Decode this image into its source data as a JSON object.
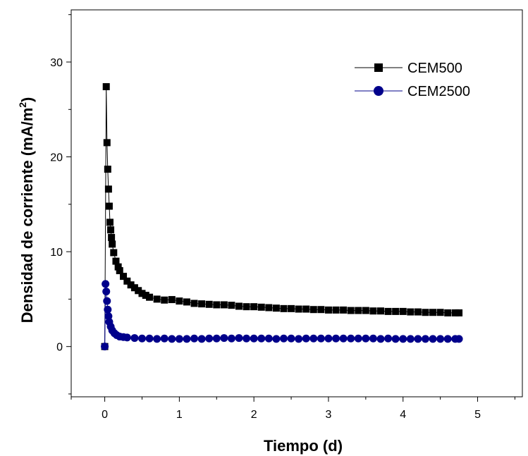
{
  "chart_data": {
    "type": "scatter",
    "xlabel": "Tiempo (d)",
    "ylabel_main": "Densidad de corriente (mA/m",
    "ylabel_sup": "2",
    "ylabel_close": ")",
    "xlim": [
      -0.45,
      5.6
    ],
    "ylim": [
      -5.3,
      35.5
    ],
    "x_ticks": [
      0,
      1,
      2,
      3,
      4,
      5
    ],
    "y_ticks": [
      0,
      10,
      20,
      30
    ],
    "grid": false,
    "legend_position": "top-right",
    "series": [
      {
        "name": "CEM500",
        "marker": "square",
        "color": "#000000",
        "points": [
          [
            0.0,
            0.0
          ],
          [
            0.02,
            27.4
          ],
          [
            0.03,
            21.5
          ],
          [
            0.04,
            18.7
          ],
          [
            0.05,
            16.6
          ],
          [
            0.06,
            14.8
          ],
          [
            0.07,
            13.1
          ],
          [
            0.08,
            12.3
          ],
          [
            0.09,
            11.5
          ],
          [
            0.1,
            10.8
          ],
          [
            0.12,
            9.9
          ],
          [
            0.15,
            9.0
          ],
          [
            0.18,
            8.4
          ],
          [
            0.2,
            8.0
          ],
          [
            0.25,
            7.4
          ],
          [
            0.3,
            6.9
          ],
          [
            0.35,
            6.5
          ],
          [
            0.4,
            6.2
          ],
          [
            0.45,
            5.9
          ],
          [
            0.5,
            5.6
          ],
          [
            0.55,
            5.4
          ],
          [
            0.6,
            5.2
          ],
          [
            0.7,
            5.0
          ],
          [
            0.8,
            4.9
          ],
          [
            0.9,
            4.95
          ],
          [
            1.0,
            4.8
          ],
          [
            1.1,
            4.7
          ],
          [
            1.2,
            4.55
          ],
          [
            1.3,
            4.5
          ],
          [
            1.4,
            4.45
          ],
          [
            1.5,
            4.4
          ],
          [
            1.6,
            4.4
          ],
          [
            1.7,
            4.35
          ],
          [
            1.8,
            4.25
          ],
          [
            1.9,
            4.2
          ],
          [
            2.0,
            4.2
          ],
          [
            2.1,
            4.15
          ],
          [
            2.2,
            4.1
          ],
          [
            2.3,
            4.05
          ],
          [
            2.4,
            4.0
          ],
          [
            2.5,
            4.0
          ],
          [
            2.6,
            3.95
          ],
          [
            2.7,
            3.95
          ],
          [
            2.8,
            3.9
          ],
          [
            2.9,
            3.9
          ],
          [
            3.0,
            3.85
          ],
          [
            3.1,
            3.85
          ],
          [
            3.2,
            3.85
          ],
          [
            3.3,
            3.8
          ],
          [
            3.4,
            3.8
          ],
          [
            3.5,
            3.8
          ],
          [
            3.6,
            3.75
          ],
          [
            3.7,
            3.75
          ],
          [
            3.8,
            3.7
          ],
          [
            3.9,
            3.7
          ],
          [
            4.0,
            3.7
          ],
          [
            4.1,
            3.65
          ],
          [
            4.2,
            3.65
          ],
          [
            4.3,
            3.6
          ],
          [
            4.4,
            3.6
          ],
          [
            4.5,
            3.6
          ],
          [
            4.6,
            3.55
          ],
          [
            4.7,
            3.55
          ],
          [
            4.75,
            3.55
          ]
        ]
      },
      {
        "name": "CEM2500",
        "marker": "circle",
        "color": "#00008b",
        "points": [
          [
            0.0,
            0.0
          ],
          [
            0.01,
            6.6
          ],
          [
            0.02,
            5.8
          ],
          [
            0.03,
            4.8
          ],
          [
            0.04,
            3.9
          ],
          [
            0.05,
            3.2
          ],
          [
            0.06,
            2.6
          ],
          [
            0.08,
            2.1
          ],
          [
            0.1,
            1.7
          ],
          [
            0.13,
            1.4
          ],
          [
            0.16,
            1.2
          ],
          [
            0.2,
            1.05
          ],
          [
            0.25,
            1.0
          ],
          [
            0.3,
            0.95
          ],
          [
            0.4,
            0.9
          ],
          [
            0.5,
            0.85
          ],
          [
            0.6,
            0.85
          ],
          [
            0.7,
            0.8
          ],
          [
            0.8,
            0.85
          ],
          [
            0.9,
            0.8
          ],
          [
            1.0,
            0.8
          ],
          [
            1.1,
            0.8
          ],
          [
            1.2,
            0.85
          ],
          [
            1.3,
            0.8
          ],
          [
            1.4,
            0.85
          ],
          [
            1.5,
            0.85
          ],
          [
            1.6,
            0.9
          ],
          [
            1.7,
            0.85
          ],
          [
            1.8,
            0.9
          ],
          [
            1.9,
            0.85
          ],
          [
            2.0,
            0.85
          ],
          [
            2.1,
            0.85
          ],
          [
            2.2,
            0.85
          ],
          [
            2.3,
            0.8
          ],
          [
            2.4,
            0.85
          ],
          [
            2.5,
            0.85
          ],
          [
            2.6,
            0.8
          ],
          [
            2.7,
            0.85
          ],
          [
            2.8,
            0.85
          ],
          [
            2.9,
            0.85
          ],
          [
            3.0,
            0.85
          ],
          [
            3.1,
            0.85
          ],
          [
            3.2,
            0.85
          ],
          [
            3.3,
            0.85
          ],
          [
            3.4,
            0.85
          ],
          [
            3.5,
            0.85
          ],
          [
            3.6,
            0.85
          ],
          [
            3.7,
            0.8
          ],
          [
            3.8,
            0.85
          ],
          [
            3.9,
            0.8
          ],
          [
            4.0,
            0.8
          ],
          [
            4.1,
            0.8
          ],
          [
            4.2,
            0.8
          ],
          [
            4.3,
            0.8
          ],
          [
            4.4,
            0.8
          ],
          [
            4.5,
            0.8
          ],
          [
            4.6,
            0.8
          ],
          [
            4.7,
            0.8
          ],
          [
            4.75,
            0.8
          ]
        ]
      }
    ]
  }
}
